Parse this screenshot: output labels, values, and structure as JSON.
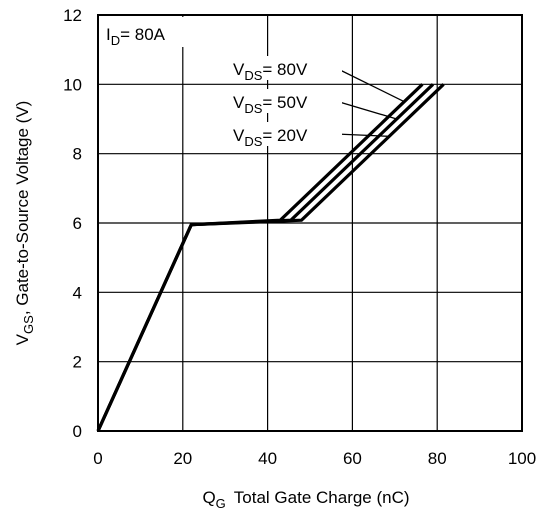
{
  "chart_data": {
    "type": "line",
    "xlabel": {
      "main": "Q",
      "sub": "G",
      "rest": "Total Gate Charge (nC)"
    },
    "ylabel": {
      "main": "V",
      "sub": "GS",
      "rest": ", Gate-to-Source Voltage (V)"
    },
    "xlim": [
      0,
      100
    ],
    "ylim": [
      0,
      12
    ],
    "xticks": [
      0,
      20,
      40,
      60,
      80,
      100
    ],
    "yticks": [
      0,
      2,
      4,
      6,
      8,
      10,
      12
    ],
    "grid": true,
    "condition": {
      "main": "I",
      "sub": "D",
      "rest": "= 80A"
    },
    "series": [
      {
        "name": "V_DS = 80V",
        "label": {
          "main": "V",
          "sub": "DS",
          "rest": "= 80V"
        },
        "x": [
          0,
          22,
          43,
          76.5
        ],
        "y": [
          0,
          5.95,
          6.08,
          10.0
        ]
      },
      {
        "name": "V_DS = 50V",
        "label": {
          "main": "V",
          "sub": "DS",
          "rest": "= 50V"
        },
        "x": [
          0,
          22,
          45.5,
          79
        ],
        "y": [
          0,
          5.95,
          6.08,
          10.0
        ]
      },
      {
        "name": "V_DS = 20V",
        "label": {
          "main": "V",
          "sub": "DS",
          "rest": "= 20V"
        },
        "x": [
          0,
          22,
          48,
          81.5
        ],
        "y": [
          0,
          5.95,
          6.08,
          10.0
        ]
      }
    ]
  }
}
